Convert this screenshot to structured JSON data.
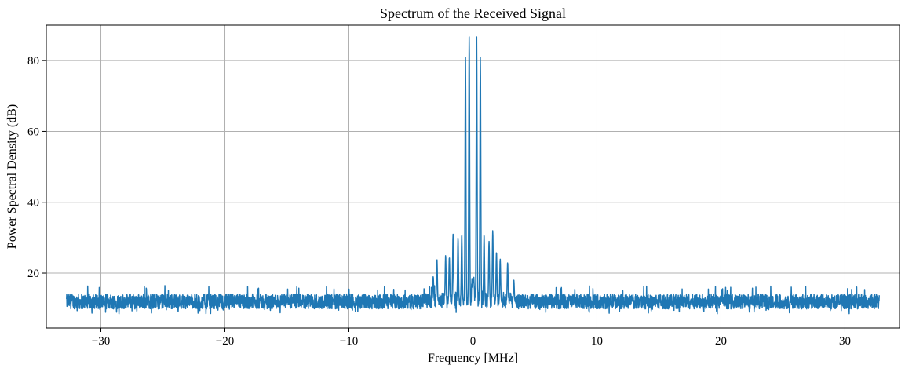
{
  "chart_data": {
    "type": "line",
    "title": "Spectrum of the Received Signal",
    "xlabel": "Frequency [MHz]",
    "ylabel": "Power Spectral Density (dB)",
    "xlim": [
      -34.4,
      34.4
    ],
    "ylim": [
      4.5,
      90
    ],
    "xticks": [
      -30,
      -20,
      -10,
      0,
      10,
      20,
      30
    ],
    "xtick_labels": [
      "−30",
      "−20",
      "−10",
      "0",
      "10",
      "20",
      "30"
    ],
    "yticks": [
      20,
      40,
      60,
      80
    ],
    "ytick_labels": [
      "20",
      "40",
      "60",
      "80"
    ],
    "grid": true,
    "line_color": "#1f77b4",
    "grid_color": "#b0b0b0",
    "series": [
      {
        "name": "",
        "x_range": [
          -32.768,
          32.768
        ],
        "noise_floor_db": 12,
        "noise_band_db": [
          8.5,
          16.5
        ],
        "peaks": [
          {
            "x": -0.3,
            "y": 87
          },
          {
            "x": 0.3,
            "y": 87
          },
          {
            "x": -0.6,
            "y": 81
          },
          {
            "x": 0.6,
            "y": 81
          },
          {
            "x": -1.6,
            "y": 31
          },
          {
            "x": 1.6,
            "y": 32
          },
          {
            "x": -0.9,
            "y": 31
          },
          {
            "x": 0.9,
            "y": 31
          },
          {
            "x": -2.2,
            "y": 25
          },
          {
            "x": -1.9,
            "y": 24.5
          },
          {
            "x": 1.9,
            "y": 26
          },
          {
            "x": 2.2,
            "y": 24
          },
          {
            "x": -2.9,
            "y": 24
          },
          {
            "x": 2.8,
            "y": 23
          },
          {
            "x": -3.2,
            "y": 19
          },
          {
            "x": 3.3,
            "y": 18
          },
          {
            "x": -1.2,
            "y": 30
          },
          {
            "x": 1.3,
            "y": 29
          }
        ]
      }
    ]
  }
}
